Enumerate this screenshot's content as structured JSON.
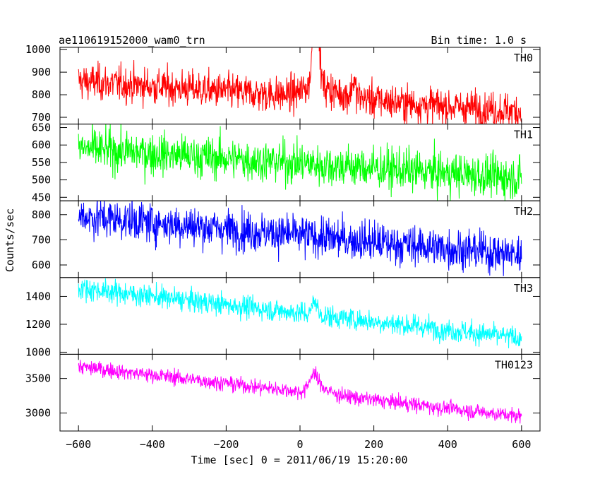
{
  "header": {
    "title": "ae110619152000_wam0_trn",
    "bin_time": "Bin time: 1.0 s"
  },
  "chart_data": {
    "type": "line",
    "xlabel": "Time [sec] 0 = 2011/06/19 15:20:00",
    "ylabel": "Counts/sec",
    "xlim": [
      -650,
      650
    ],
    "x_ticks": [
      -600,
      -400,
      -200,
      0,
      200,
      400,
      600
    ],
    "x_tick_labels": [
      "−600",
      "−400",
      "−200",
      "0",
      "200",
      "400",
      "600"
    ],
    "x_range": [
      -600,
      600
    ],
    "grid": false,
    "panels": [
      {
        "name": "TH0",
        "color": "#ff0000",
        "ylim": [
          670,
          1010
        ],
        "y_ticks": [
          700,
          800,
          900,
          1000
        ],
        "y_tick_labels": [
          "700",
          "800",
          "900",
          "1000"
        ],
        "trend_start": 860,
        "trend_end": 725,
        "noise": 40,
        "features": [
          {
            "kind": "spike",
            "center": 43,
            "width": 7,
            "height": 500
          },
          {
            "kind": "bump",
            "center": 50,
            "width": 35,
            "height": 60
          },
          {
            "kind": "spike",
            "center": 145,
            "width": 5,
            "height": 70
          }
        ]
      },
      {
        "name": "TH1",
        "color": "#00ff00",
        "ylim": [
          440,
          660
        ],
        "y_ticks": [
          450,
          500,
          550,
          600,
          650
        ],
        "y_tick_labels": [
          "450",
          "500",
          "550",
          "600",
          "650"
        ],
        "trend_start": 590,
        "trend_end": 505,
        "noise": 30,
        "features": []
      },
      {
        "name": "TH2",
        "color": "#0000ff",
        "ylim": [
          550,
          855
        ],
        "y_ticks": [
          600,
          700,
          800
        ],
        "y_tick_labels": [
          "600",
          "700",
          "800"
        ],
        "trend_start": 795,
        "trend_end": 640,
        "noise": 40,
        "features": []
      },
      {
        "name": "TH3",
        "color": "#00ffff",
        "ylim": [
          985,
          1535
        ],
        "y_ticks": [
          1000,
          1200,
          1400
        ],
        "y_tick_labels": [
          "1000",
          "1200",
          "1400"
        ],
        "trend_start": 1460,
        "trend_end": 1100,
        "noise": 40,
        "features": [
          {
            "kind": "spike",
            "center": 40,
            "width": 6,
            "height": 110
          }
        ]
      },
      {
        "name": "TH0123",
        "color": "#ff00ff",
        "ylim": [
          2740,
          3850
        ],
        "y_ticks": [
          3000,
          3500
        ],
        "y_tick_labels": [
          "3000",
          "3500"
        ],
        "trend_start": 3670,
        "trend_end": 2950,
        "noise": 55,
        "features": [
          {
            "kind": "bump",
            "center": 38,
            "width": 12,
            "height": 300
          }
        ]
      }
    ]
  }
}
